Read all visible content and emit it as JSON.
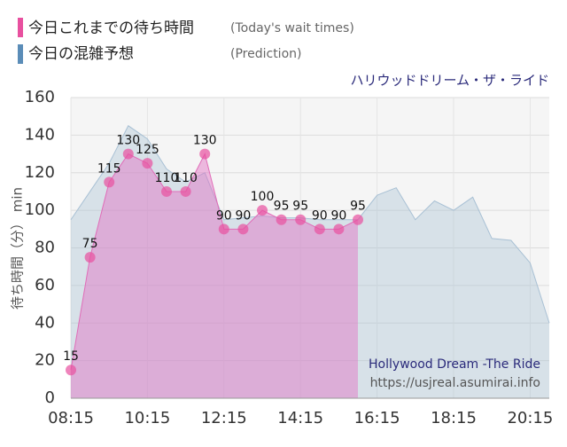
{
  "chart_data": {
    "type": "area",
    "title": "ハリウッドドリーム・ザ・ライド",
    "ylabel": "待ち時間（分） min",
    "annotations": [
      "Hollywood Dream -The Ride",
      "https://usjreal.asumirai.info"
    ],
    "x": [
      "08:15",
      "08:45",
      "09:15",
      "09:45",
      "10:15",
      "10:45",
      "11:15",
      "11:45",
      "12:15",
      "12:45",
      "13:15",
      "13:45",
      "14:15",
      "14:45",
      "15:15",
      "15:45",
      "16:15",
      "16:45",
      "17:15",
      "17:45",
      "18:15",
      "18:45",
      "19:15",
      "19:45",
      "20:15",
      "20:45"
    ],
    "series": [
      {
        "name": "今日これまでの待ち時間",
        "note": "(Today's wait times)",
        "color": "#e8509f",
        "values": [
          15,
          75,
          115,
          130,
          125,
          110,
          110,
          130,
          90,
          90,
          100,
          95,
          95,
          90,
          90,
          95,
          null,
          null,
          null,
          null,
          null,
          null,
          null,
          null,
          null,
          null
        ]
      },
      {
        "name": "今日の混雑予想",
        "note": "(Prediction)",
        "color": "#5b8db8",
        "values": [
          95,
          110,
          125,
          145,
          138,
          122,
          115,
          120,
          95,
          96,
          97,
          96,
          96,
          95,
          95,
          95,
          108,
          112,
          95,
          105,
          100,
          107,
          85,
          84,
          72,
          40
        ]
      }
    ],
    "xlim": [
      "08:15",
      "20:45"
    ],
    "xticks": [
      "08:15",
      "10:15",
      "12:15",
      "14:15",
      "16:15",
      "18:15",
      "20:15"
    ],
    "ylim": [
      0,
      160
    ],
    "yticks": [
      0,
      20,
      40,
      60,
      80,
      100,
      120,
      140,
      160
    ],
    "grid": true
  }
}
